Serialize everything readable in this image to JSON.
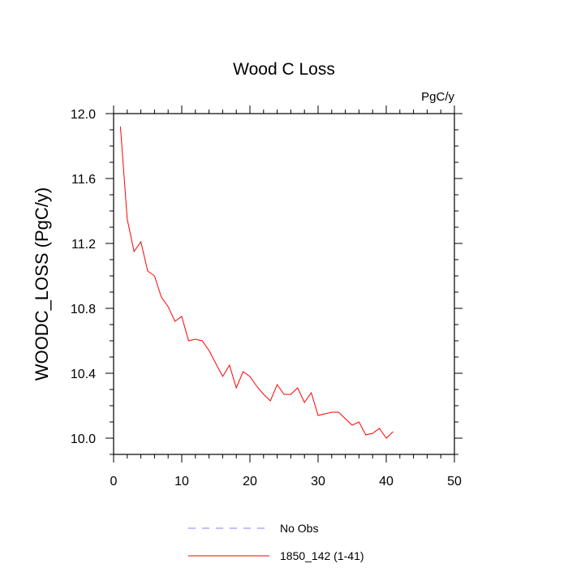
{
  "chart_data": {
    "type": "line",
    "title": "Wood C Loss",
    "units_label": "PgC/y",
    "ylabel": "WOODC_LOSS  (PgC/y)",
    "xlabel": "",
    "xlim": [
      0,
      50
    ],
    "ylim": [
      9.9,
      12.0
    ],
    "xticks": [
      0,
      10,
      20,
      30,
      40,
      50
    ],
    "yticks": [
      10.0,
      10.4,
      10.8,
      11.2,
      11.6,
      12.0
    ],
    "xtick_labels": [
      "0",
      "10",
      "20",
      "30",
      "40",
      "50"
    ],
    "ytick_labels": [
      "10.0",
      "10.4",
      "10.8",
      "11.2",
      "11.6",
      "12.0"
    ],
    "grid": false,
    "legend_placement": "bottom",
    "series": [
      {
        "name": "No Obs",
        "color": "#8080ff",
        "dash": "dashed",
        "x": [],
        "values": []
      },
      {
        "name": "1850_142 (1-41)",
        "color": "#ff0000",
        "dash": "solid",
        "x": [
          1,
          2,
          3,
          4,
          5,
          6,
          7,
          8,
          9,
          10,
          11,
          12,
          13,
          14,
          15,
          16,
          17,
          18,
          19,
          20,
          21,
          22,
          23,
          24,
          25,
          26,
          27,
          28,
          29,
          30,
          31,
          32,
          33,
          34,
          35,
          36,
          37,
          38,
          39,
          40,
          41
        ],
        "values": [
          11.92,
          11.35,
          11.15,
          11.21,
          11.03,
          11.0,
          10.87,
          10.81,
          10.72,
          10.75,
          10.6,
          10.61,
          10.6,
          10.54,
          10.46,
          10.38,
          10.45,
          10.31,
          10.41,
          10.38,
          10.32,
          10.27,
          10.23,
          10.33,
          10.27,
          10.27,
          10.31,
          10.22,
          10.28,
          10.14,
          10.15,
          10.16,
          10.16,
          10.12,
          10.08,
          10.1,
          10.02,
          10.03,
          10.06,
          10.0,
          10.04
        ]
      }
    ]
  }
}
